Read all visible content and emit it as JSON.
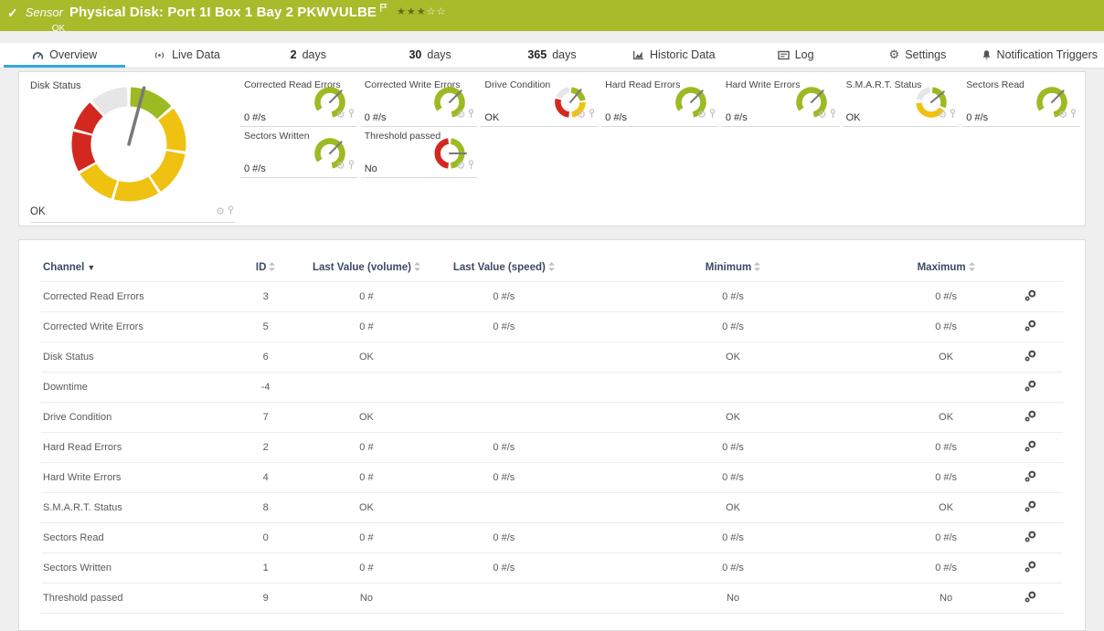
{
  "colors": {
    "ok_green": "#a9ba2b",
    "accent_blue": "#36a9e0",
    "gauge_green": "#9cba22",
    "gauge_yellow": "#efc211",
    "gauge_red": "#d3281f",
    "gauge_gray": "#e6e6e6",
    "needle": "#787878"
  },
  "header": {
    "status_check": "✓",
    "kind": "Sensor",
    "title": "Physical Disk: Port 1I Box 1 Bay 2 PKWVULBE",
    "status": "OK",
    "stars_filled": "★★★",
    "stars_empty": "☆☆"
  },
  "tabs": [
    {
      "id": "overview",
      "icon": "gauge",
      "label": "Overview",
      "active": true
    },
    {
      "id": "live-data",
      "icon": "live",
      "label": "Live Data"
    },
    {
      "id": "2-days",
      "num": "2",
      "label": "days"
    },
    {
      "id": "30-days",
      "num": "30",
      "label": "days"
    },
    {
      "id": "365-days",
      "num": "365",
      "label": "days"
    },
    {
      "id": "historic-data",
      "icon": "chart",
      "label": "Historic Data"
    },
    {
      "id": "log",
      "icon": "log",
      "label": "Log"
    },
    {
      "id": "settings",
      "icon": "gear",
      "label": "Settings"
    },
    {
      "id": "notification-triggers",
      "icon": "bell",
      "label": "Notification Triggers"
    }
  ],
  "gauges": {
    "big": {
      "title": "Disk Status",
      "value": "OK",
      "type": "disk-status"
    },
    "small": [
      {
        "title": "Corrected Read Errors",
        "value": "0 #/s",
        "type": "arc"
      },
      {
        "title": "Corrected Write Errors",
        "value": "0 #/s",
        "type": "arc"
      },
      {
        "title": "Drive Condition",
        "value": "OK",
        "type": "condition"
      },
      {
        "title": "Hard Read Errors",
        "value": "0 #/s",
        "type": "arc"
      },
      {
        "title": "Hard Write Errors",
        "value": "0 #/s",
        "type": "arc"
      },
      {
        "title": "S.M.A.R.T. Status",
        "value": "OK",
        "type": "smart"
      },
      {
        "title": "Sectors Read",
        "value": "0 #/s",
        "type": "arc"
      },
      {
        "title": "Sectors Written",
        "value": "0 #/s",
        "type": "arc"
      },
      {
        "title": "Threshold passed",
        "value": "No",
        "type": "half"
      }
    ],
    "types": {
      "disk-status": {
        "needle": 15,
        "segments": [
          {
            "color": "green",
            "from": 2,
            "to": 48
          },
          {
            "color": "yellow",
            "from": 51,
            "to": 97
          },
          {
            "color": "yellow",
            "from": 100,
            "to": 146
          },
          {
            "color": "yellow",
            "from": 149,
            "to": 195
          },
          {
            "color": "yellow",
            "from": 198,
            "to": 239
          },
          {
            "color": "red",
            "from": 242,
            "to": 283
          },
          {
            "color": "red",
            "from": 286,
            "to": 317
          },
          {
            "color": "gray",
            "from": 320,
            "to": 358
          }
        ]
      },
      "arc": {
        "needle": 45,
        "segments": [
          {
            "color": "green",
            "from": 235,
            "to": 530
          }
        ]
      },
      "condition": {
        "needle": 40,
        "segments": [
          {
            "color": "gray",
            "from": 292,
            "to": 355
          },
          {
            "color": "green",
            "from": 5,
            "to": 82
          },
          {
            "color": "yellow",
            "from": 90,
            "to": 172
          },
          {
            "color": "red",
            "from": 186,
            "to": 284
          }
        ]
      },
      "smart": {
        "needle": 50,
        "segments": [
          {
            "color": "gray",
            "from": 282,
            "to": 355
          },
          {
            "color": "green",
            "from": 5,
            "to": 112
          },
          {
            "color": "yellow",
            "from": 122,
            "to": 266
          }
        ]
      },
      "half": {
        "needle": 90,
        "segments": [
          {
            "color": "red",
            "from": 186,
            "to": 354
          },
          {
            "color": "green",
            "from": 6,
            "to": 174
          }
        ]
      }
    }
  },
  "table": {
    "columns": [
      {
        "key": "name",
        "label": "Channel",
        "sorted": true
      },
      {
        "key": "id",
        "label": "ID"
      },
      {
        "key": "lastVolume",
        "label": "Last Value (volume)"
      },
      {
        "key": "lastSpeed",
        "label": "Last Value (speed)"
      },
      {
        "key": "min",
        "label": "Minimum"
      },
      {
        "key": "max",
        "label": "Maximum"
      }
    ],
    "rows": [
      {
        "name": "Corrected Read Errors",
        "id": "3",
        "lastVolume": "0 #",
        "lastSpeed": "0 #/s",
        "min": "0 #/s",
        "max": "0 #/s"
      },
      {
        "name": "Corrected Write Errors",
        "id": "5",
        "lastVolume": "0 #",
        "lastSpeed": "0 #/s",
        "min": "0 #/s",
        "max": "0 #/s"
      },
      {
        "name": "Disk Status",
        "id": "6",
        "lastVolume": "OK",
        "lastSpeed": "",
        "min": "OK",
        "max": "OK"
      },
      {
        "name": "Downtime",
        "id": "-4",
        "lastVolume": "",
        "lastSpeed": "",
        "min": "",
        "max": ""
      },
      {
        "name": "Drive Condition",
        "id": "7",
        "lastVolume": "OK",
        "lastSpeed": "",
        "min": "OK",
        "max": "OK"
      },
      {
        "name": "Hard Read Errors",
        "id": "2",
        "lastVolume": "0 #",
        "lastSpeed": "0 #/s",
        "min": "0 #/s",
        "max": "0 #/s"
      },
      {
        "name": "Hard Write Errors",
        "id": "4",
        "lastVolume": "0 #",
        "lastSpeed": "0 #/s",
        "min": "0 #/s",
        "max": "0 #/s"
      },
      {
        "name": "S.M.A.R.T. Status",
        "id": "8",
        "lastVolume": "OK",
        "lastSpeed": "",
        "min": "OK",
        "max": "OK"
      },
      {
        "name": "Sectors Read",
        "id": "0",
        "lastVolume": "0 #",
        "lastSpeed": "0 #/s",
        "min": "0 #/s",
        "max": "0 #/s"
      },
      {
        "name": "Sectors Written",
        "id": "1",
        "lastVolume": "0 #",
        "lastSpeed": "0 #/s",
        "min": "0 #/s",
        "max": "0 #/s"
      },
      {
        "name": "Threshold passed",
        "id": "9",
        "lastVolume": "No",
        "lastSpeed": "",
        "min": "No",
        "max": "No"
      }
    ]
  }
}
